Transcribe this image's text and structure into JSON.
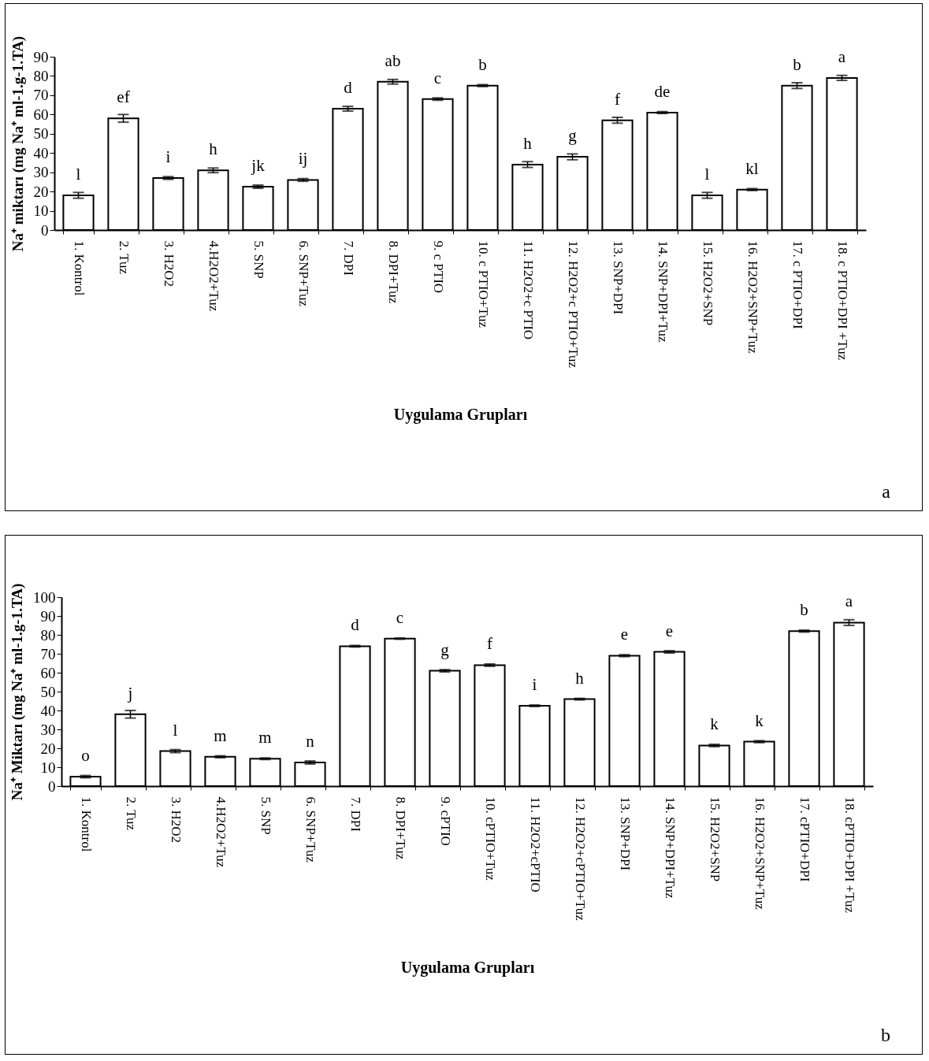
{
  "chart_data": [
    {
      "type": "bar",
      "ylabel": "Na⁺ miktarı (mg Na⁺ ml-1.g-1.TA)",
      "xlabel": "Uygulama Grupları",
      "categories": [
        "1. Kontrol",
        "2. Tuz",
        "3. H2O2",
        "4.H2O2+Tuz",
        "5. SNP",
        "6. SNP+Tuz",
        "7. DPI",
        "8. DPI+Tuz",
        "9. c PTIO",
        "10. c PTIO+Tuz",
        "11. H2O2+c PTIO",
        "12. H2O2+c PTIO+Tuz",
        "13. SNP+DPI",
        "14. SNP+DPI+Tuz",
        "15. H2O2+SNP",
        "16. H2O2+SNP+Tuz",
        "17. c PTIO+DPI",
        "18. c PTIO+DPI +Tuz"
      ],
      "values": [
        18,
        58,
        27,
        31,
        22.5,
        26,
        63,
        77,
        68,
        75,
        34,
        38,
        57,
        61,
        18,
        21,
        75,
        79
      ],
      "errors": [
        1.5,
        2,
        0.7,
        1.2,
        0.8,
        0.7,
        1.2,
        1.2,
        0.6,
        0.5,
        1.5,
        1.5,
        1.5,
        0.5,
        1.5,
        0.5,
        1.5,
        1.3
      ],
      "color": "#ffffff",
      "ylim": [
        0,
        90
      ],
      "yticks": [
        0,
        10,
        20,
        30,
        40,
        50,
        60,
        70,
        80,
        90
      ],
      "grid": false,
      "annotations": [
        {
          "text": "l",
          "x": "1. Kontrol",
          "y": 18
        },
        {
          "text": "ef",
          "x": "2. Tuz",
          "y": 58
        },
        {
          "text": "i",
          "x": "3. H2O2",
          "y": 27
        },
        {
          "text": "h",
          "x": "4.H2O2+Tuz",
          "y": 31
        },
        {
          "text": "jk",
          "x": "5. SNP",
          "y": 22.5
        },
        {
          "text": "ij",
          "x": "6. SNP+Tuz",
          "y": 26
        },
        {
          "text": "d",
          "x": "7. DPI",
          "y": 63
        },
        {
          "text": "ab",
          "x": "8. DPI+Tuz",
          "y": 77
        },
        {
          "text": "c",
          "x": "9. c PTIO",
          "y": 68
        },
        {
          "text": "b",
          "x": "10. c PTIO+Tuz",
          "y": 75
        },
        {
          "text": "h",
          "x": "11. H2O2+c PTIO",
          "y": 34
        },
        {
          "text": "g",
          "x": "12. H2O2+c PTIO+Tuz",
          "y": 38
        },
        {
          "text": "f",
          "x": "13. SNP+DPI",
          "y": 57
        },
        {
          "text": "de",
          "x": "14. SNP+DPI+Tuz",
          "y": 61
        },
        {
          "text": "l",
          "x": "15. H2O2+SNP",
          "y": 18
        },
        {
          "text": "kl",
          "x": "16. H2O2+SNP+Tuz",
          "y": 21
        },
        {
          "text": "b",
          "x": "17. c PTIO+DPI",
          "y": 75
        },
        {
          "text": "a",
          "x": "18. c PTIO+DPI +Tuz",
          "y": 79
        },
        "a"
      ]
    },
    {
      "type": "bar",
      "ylabel": "Na⁺ Miktarı (mg Na⁺ ml-1.g-1.TA)",
      "xlabel": "Uygulama Grupları",
      "categories": [
        "1. Kontrol",
        "2. Tuz",
        "3. H2O2",
        "4.H2O2+Tuz",
        "5. SNP",
        "6. SNP+Tuz",
        "7. DPI",
        "8. DPI+Tuz",
        "9. cPTIO",
        "10. cPTIO+Tuz",
        "11. H2O2+cPTIO",
        "12. H2O2+cPTIO+Tuz",
        "13. SNP+DPI",
        "14. SNP+DPI+Tuz",
        "15. H2O2+SNP",
        "16. H2O2+SNP+Tuz",
        "17. cPTIO+DPI",
        "18. cPTIO+DPI +Tuz"
      ],
      "values": [
        5,
        38,
        18.5,
        15.5,
        14.5,
        12.5,
        74,
        78,
        61,
        64,
        42.5,
        46,
        69,
        71,
        21.5,
        23.5,
        82,
        86.5
      ],
      "errors": [
        0.6,
        2,
        0.8,
        0.5,
        0.4,
        0.8,
        0.4,
        0.3,
        0.6,
        0.6,
        0.4,
        0.4,
        0.5,
        0.6,
        0.6,
        0.5,
        0.5,
        1.5
      ],
      "color": "#ffffff",
      "ylim": [
        0,
        100
      ],
      "yticks": [
        0,
        10,
        20,
        30,
        40,
        50,
        60,
        70,
        80,
        90,
        100
      ],
      "grid": false,
      "annotations": [
        {
          "text": "o",
          "x": "1. Kontrol",
          "y": 5
        },
        {
          "text": "j",
          "x": "2. Tuz",
          "y": 38
        },
        {
          "text": "l",
          "x": "3. H2O2",
          "y": 18.5
        },
        {
          "text": "m",
          "x": "4.H2O2+Tuz",
          "y": 15.5
        },
        {
          "text": "m",
          "x": "5. SNP",
          "y": 14.5
        },
        {
          "text": "n",
          "x": "6. SNP+Tuz",
          "y": 12.5
        },
        {
          "text": "d",
          "x": "7. DPI",
          "y": 74
        },
        {
          "text": "c",
          "x": "8. DPI+Tuz",
          "y": 78
        },
        {
          "text": "g",
          "x": "9. cPTIO",
          "y": 61
        },
        {
          "text": "f",
          "x": "10. cPTIO+Tuz",
          "y": 64
        },
        {
          "text": "i",
          "x": "11. H2O2+cPTIO",
          "y": 42.5
        },
        {
          "text": "h",
          "x": "12. H2O2+cPTIO+Tuz",
          "y": 46
        },
        {
          "text": "e",
          "x": "13. SNP+DPI",
          "y": 69
        },
        {
          "text": "e",
          "x": "14. SNP+DPI+Tuz",
          "y": 71
        },
        {
          "text": "k",
          "x": "15. H2O2+SNP",
          "y": 21.5
        },
        {
          "text": "k",
          "x": "16. H2O2+SNP+Tuz",
          "y": 23.5
        },
        {
          "text": "b",
          "x": "17. cPTIO+DPI",
          "y": 82
        },
        {
          "text": "a",
          "x": "18. cPTIO+DPI +Tuz",
          "y": 86.5
        },
        "b"
      ]
    }
  ]
}
